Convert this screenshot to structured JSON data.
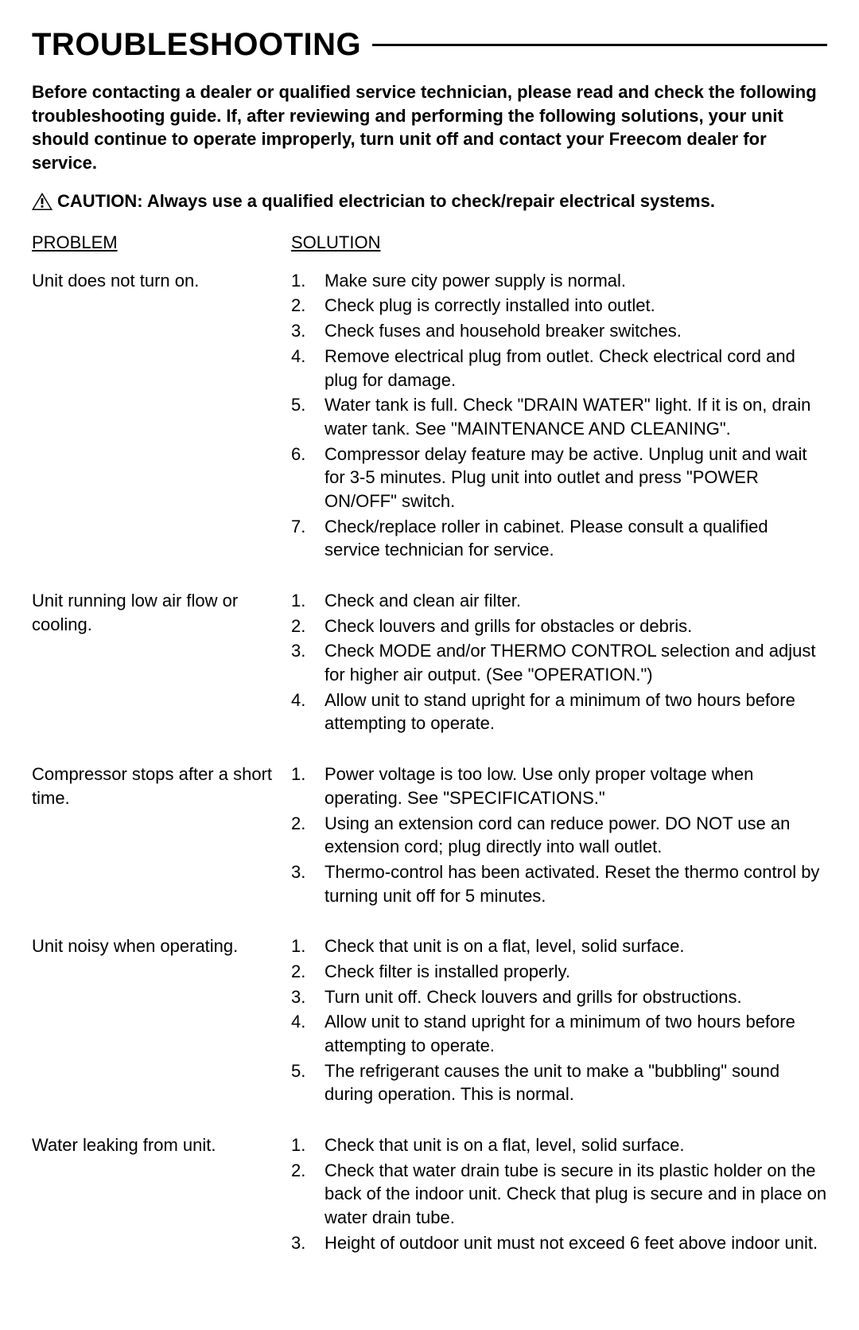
{
  "title": "TROUBLESHOOTING",
  "intro": "Before contacting a dealer or qualified service technician, please read and check the following troubleshooting guide.  If, after reviewing and performing the following solutions, your unit should continue to operate improperly, turn unit off and contact your Freecom dealer for service.",
  "caution": "CAUTION:  Always use a qualified electrician to check/repair electrical systems.",
  "headers": {
    "problem": "PROBLEM",
    "solution": "SOLUTION"
  },
  "colors": {
    "text": "#000000",
    "background": "#ffffff",
    "rule": "#000000"
  },
  "fontsizes": {
    "title": 40,
    "body": 22
  },
  "rows": [
    {
      "problem": "Unit does not turn on.",
      "solutions": [
        "Make sure city power supply is normal.",
        "Check plug is correctly installed into outlet.",
        "Check fuses and household breaker switches.",
        "Remove electrical plug from outlet. Check electrical cord and plug for damage.",
        "Water tank is full.  Check \"DRAIN WATER\" light.  If it is on, drain water tank.  See \"MAINTENANCE AND CLEANING\".",
        "Compressor delay feature may be active. Unplug unit and wait for 3-5 minutes.   Plug unit into outlet and press \"POWER ON/OFF\" switch.",
        "Check/replace roller in cabinet.  Please consult a qualified service technician for service."
      ]
    },
    {
      "problem": "Unit running low air flow or cooling.",
      "solutions": [
        "Check and clean air filter.",
        "Check louvers and grills for obstacles or debris.",
        "Check MODE and/or THERMO CONTROL selection and adjust for higher air output. (See \"OPERATION.\")",
        "Allow unit to stand upright for a minimum of two hours before attempting to operate."
      ]
    },
    {
      "problem": "Compressor stops after a short time.",
      "solutions": [
        "Power voltage is too low.  Use only proper voltage when operating.  See \"SPECIFICATIONS.\"",
        "Using an extension cord can reduce power.  DO NOT use an extension cord; plug directly into wall outlet.",
        "Thermo-control has been activated.  Reset the thermo control by turning unit off for 5 minutes."
      ]
    },
    {
      "problem": "Unit noisy when operating.",
      "solutions": [
        "Check that unit is on a flat, level, solid surface.",
        "Check filter is installed properly.",
        "Turn unit off.  Check louvers and grills for obstructions.",
        "Allow unit to stand upright for a minimum of two hours before attempting to operate.",
        "The refrigerant causes the unit to make a \"bubbling\" sound during operation.  This is normal."
      ]
    },
    {
      "problem": "Water leaking from unit.",
      "solutions": [
        "Check that unit is on a flat, level, solid surface.",
        "Check that water drain tube is secure in its plastic holder on the back of the indoor unit. Check that plug is secure and in place on water drain tube.",
        "Height of outdoor unit must not exceed 6 feet above indoor unit."
      ]
    }
  ]
}
